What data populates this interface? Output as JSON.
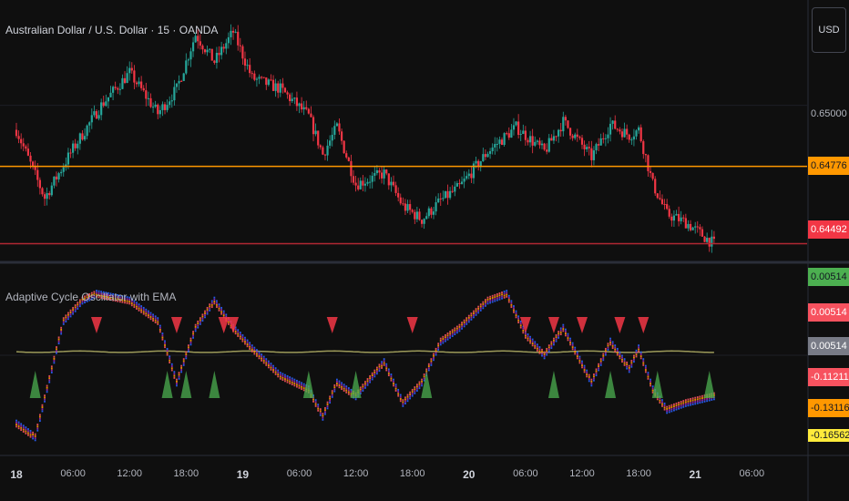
{
  "header": {
    "symbol_title": "Australian Dollar / U.S. Dollar · 15 · OANDA",
    "currency_button": "USD"
  },
  "price_axis": {
    "tick": "0.65000",
    "tags": [
      {
        "label": "0.64776",
        "bg": "#ff9800",
        "fg": "#131722"
      },
      {
        "label": "0.64492",
        "bg": "#f23645",
        "fg": "#ffffff"
      }
    ]
  },
  "indicator": {
    "title": "Adaptive Cycle Oscillator with EMA",
    "tags": [
      {
        "label": "0.00514",
        "bg": "#4caf50",
        "fg": "#131722"
      },
      {
        "label": "0.00514",
        "bg": "#f7525f",
        "fg": "#ffffff"
      },
      {
        "label": "0.00514",
        "bg": "#787b86",
        "fg": "#ffffff"
      },
      {
        "label": "-0.11211",
        "bg": "#f7525f",
        "fg": "#ffffff"
      },
      {
        "label": "-0.13116",
        "bg": "#ff9800",
        "fg": "#131722"
      },
      {
        "label": "-0.16562",
        "bg": "#ffeb3b",
        "fg": "#131722"
      }
    ]
  },
  "time_axis": {
    "labels": [
      {
        "text": "18",
        "day": true
      },
      {
        "text": "06:00",
        "day": false
      },
      {
        "text": "12:00",
        "day": false
      },
      {
        "text": "18:00",
        "day": false
      },
      {
        "text": "19",
        "day": true
      },
      {
        "text": "06:00",
        "day": false
      },
      {
        "text": "12:00",
        "day": false
      },
      {
        "text": "18:00",
        "day": false
      },
      {
        "text": "20",
        "day": true
      },
      {
        "text": "06:00",
        "day": false
      },
      {
        "text": "12:00",
        "day": false
      },
      {
        "text": "18:00",
        "day": false
      },
      {
        "text": "21",
        "day": true
      },
      {
        "text": "06:00",
        "day": false
      }
    ]
  },
  "colors": {
    "up": "#26a69a",
    "down": "#f23645",
    "orange_line": "#ff9800",
    "red_line": "#b22833",
    "ema_line": "#9c9a5a",
    "buy_marker": "#4caf50",
    "sell_marker": "#f23645"
  },
  "chart_data": {
    "type": "candlestick",
    "title": "Australian Dollar / U.S. Dollar · 15 · OANDA",
    "price_keypoints": [
      {
        "t": "18 00:00",
        "price": 0.6491
      },
      {
        "t": "18 03:00",
        "price": 0.6466
      },
      {
        "t": "18 06:00",
        "price": 0.6484
      },
      {
        "t": "18 09:00",
        "price": 0.65
      },
      {
        "t": "18 12:00",
        "price": 0.6512
      },
      {
        "t": "18 15:00",
        "price": 0.6497
      },
      {
        "t": "18 17:00",
        "price": 0.6506
      },
      {
        "t": "18 19:00",
        "price": 0.6526
      },
      {
        "t": "18 21:00",
        "price": 0.6516
      },
      {
        "t": "18 23:00",
        "price": 0.6527
      },
      {
        "t": "19 01:00",
        "price": 0.651
      },
      {
        "t": "19 04:00",
        "price": 0.6506
      },
      {
        "t": "19 07:00",
        "price": 0.6496
      },
      {
        "t": "19 08:30",
        "price": 0.6482
      },
      {
        "t": "19 10:00",
        "price": 0.6492
      },
      {
        "t": "19 12:00",
        "price": 0.6471
      },
      {
        "t": "19 15:00",
        "price": 0.6475
      },
      {
        "t": "19 17:00",
        "price": 0.6463
      },
      {
        "t": "19 19:00",
        "price": 0.6458
      },
      {
        "t": "19 21:00",
        "price": 0.6465
      },
      {
        "t": "19 23:00",
        "price": 0.647
      },
      {
        "t": "20 02:00",
        "price": 0.6483
      },
      {
        "t": "20 05:00",
        "price": 0.6492
      },
      {
        "t": "20 08:00",
        "price": 0.6483
      },
      {
        "t": "20 10:00",
        "price": 0.6494
      },
      {
        "t": "20 13:00",
        "price": 0.6481
      },
      {
        "t": "20 15:00",
        "price": 0.6493
      },
      {
        "t": "20 17:00",
        "price": 0.6489
      },
      {
        "t": "20 18:00",
        "price": 0.6491
      },
      {
        "t": "20 19:30",
        "price": 0.6471
      },
      {
        "t": "20 21:00",
        "price": 0.646
      },
      {
        "t": "20 23:00",
        "price": 0.6457
      },
      {
        "t": "21 02:00",
        "price": 0.6449
      }
    ],
    "horizontal_levels": [
      {
        "price": 0.64776,
        "color": "#ff9800"
      },
      {
        "price": 0.64492,
        "color": "#b22833"
      }
    ],
    "price_range": [
      0.6445,
      0.6532
    ],
    "oscillator": {
      "name": "Adaptive Cycle Oscillator with EMA",
      "keypoints": [
        {
          "t": "18 00:00",
          "value": -0.1
        },
        {
          "t": "18 02:00",
          "value": -0.12
        },
        {
          "t": "18 05:00",
          "value": 0.05
        },
        {
          "t": "18 07:00",
          "value": 0.08
        },
        {
          "t": "18 08:30",
          "value": 0.09
        },
        {
          "t": "18 12:00",
          "value": 0.08
        },
        {
          "t": "18 15:00",
          "value": 0.05
        },
        {
          "t": "18 17:00",
          "value": -0.04
        },
        {
          "t": "18 19:00",
          "value": 0.04
        },
        {
          "t": "18 21:00",
          "value": 0.08
        },
        {
          "t": "18 23:00",
          "value": 0.04
        },
        {
          "t": "19 01:00",
          "value": 0.01
        },
        {
          "t": "19 04:00",
          "value": -0.03
        },
        {
          "t": "19 07:00",
          "value": -0.05
        },
        {
          "t": "19 08:30",
          "value": -0.09
        },
        {
          "t": "19 10:00",
          "value": -0.04
        },
        {
          "t": "19 12:00",
          "value": -0.06
        },
        {
          "t": "19 15:00",
          "value": -0.01
        },
        {
          "t": "19 17:00",
          "value": -0.07
        },
        {
          "t": "19 19:00",
          "value": -0.04
        },
        {
          "t": "19 21:00",
          "value": 0.02
        },
        {
          "t": "19 23:00",
          "value": 0.04
        },
        {
          "t": "20 02:00",
          "value": 0.08
        },
        {
          "t": "20 04:00",
          "value": 0.09
        },
        {
          "t": "20 06:00",
          "value": 0.03
        },
        {
          "t": "20 08:00",
          "value": 0.0
        },
        {
          "t": "20 10:00",
          "value": 0.04
        },
        {
          "t": "20 13:00",
          "value": -0.04
        },
        {
          "t": "20 15:00",
          "value": 0.02
        },
        {
          "t": "20 17:00",
          "value": -0.02
        },
        {
          "t": "20 18:00",
          "value": 0.01
        },
        {
          "t": "20 19:30",
          "value": -0.05
        },
        {
          "t": "20 21:00",
          "value": -0.08
        },
        {
          "t": "20 23:00",
          "value": -0.07
        },
        {
          "t": "21 02:00",
          "value": -0.06
        }
      ],
      "ema_value": 0.00514,
      "value_range": [
        -0.14,
        0.12
      ],
      "sell_signals_at": [
        "18 08:30",
        "18 17:00",
        "18 22:00",
        "18 23:00",
        "19 09:30",
        "19 18:00",
        "20 06:00",
        "20 09:00",
        "20 12:00",
        "20 16:00",
        "20 18:30"
      ],
      "buy_signals_at": [
        "18 02:00",
        "18 16:00",
        "18 18:00",
        "18 21:00",
        "19 07:00",
        "19 12:00",
        "19 19:30",
        "20 09:00",
        "20 15:00",
        "20 20:00",
        "21 01:30"
      ]
    }
  }
}
